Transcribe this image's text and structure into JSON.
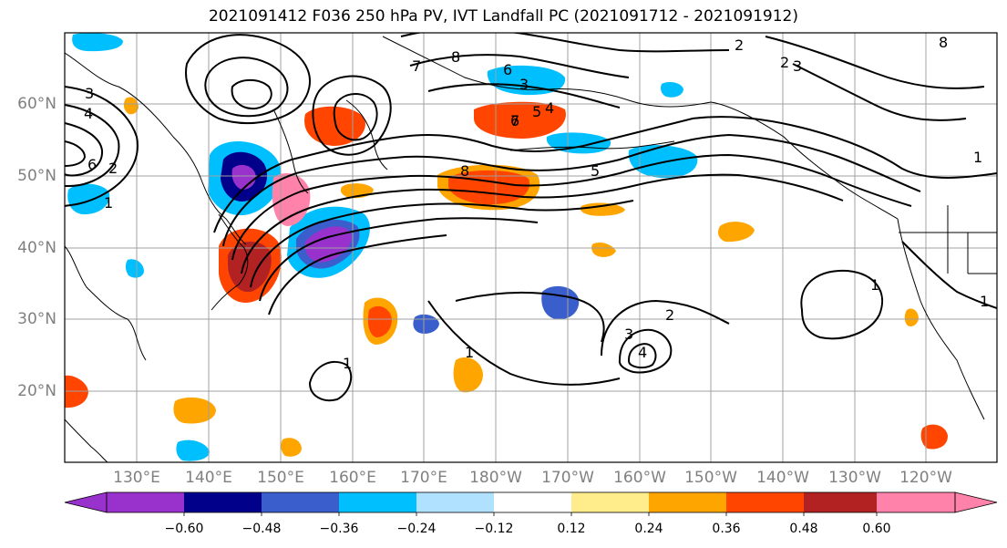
{
  "title": "2021091412 F036 250 hPa PV, IVT Landfall PC (2021091712 - 2021091912)",
  "lat_labels": [
    "60°N",
    "50°N",
    "40°N",
    "30°N",
    "20°N"
  ],
  "lon_labels": [
    "130°E",
    "140°E",
    "150°E",
    "160°E",
    "170°E",
    "180°W",
    "170°W",
    "160°W",
    "150°W",
    "140°W",
    "130°W",
    "120°W"
  ],
  "colorbar": {
    "tick_labels": [
      "−0.60",
      "−0.48",
      "−0.36",
      "−0.24",
      "−0.12",
      "0.12",
      "0.24",
      "0.36",
      "0.48",
      "0.60"
    ],
    "colors": [
      "#9932cc",
      "#00008b",
      "#3a5fcd",
      "#00bfff",
      "#b0e2ff",
      "#ffffff",
      "#ffec8b",
      "#ffa500",
      "#ff4500",
      "#b22222",
      "#ff82ab"
    ]
  },
  "contour_labels": [
    "8",
    "7",
    "6",
    "5",
    "4",
    "3",
    "2",
    "1",
    "8",
    "6",
    "5",
    "4",
    "3",
    "2",
    "1",
    "1",
    "2",
    "3",
    "4",
    "3",
    "2",
    "1",
    "1",
    "7",
    "6",
    "8",
    "1"
  ],
  "colors": {
    "contour": "#000000",
    "coast": "#000000",
    "grid": "#a0a0a0",
    "axis_text": "#808080"
  }
}
